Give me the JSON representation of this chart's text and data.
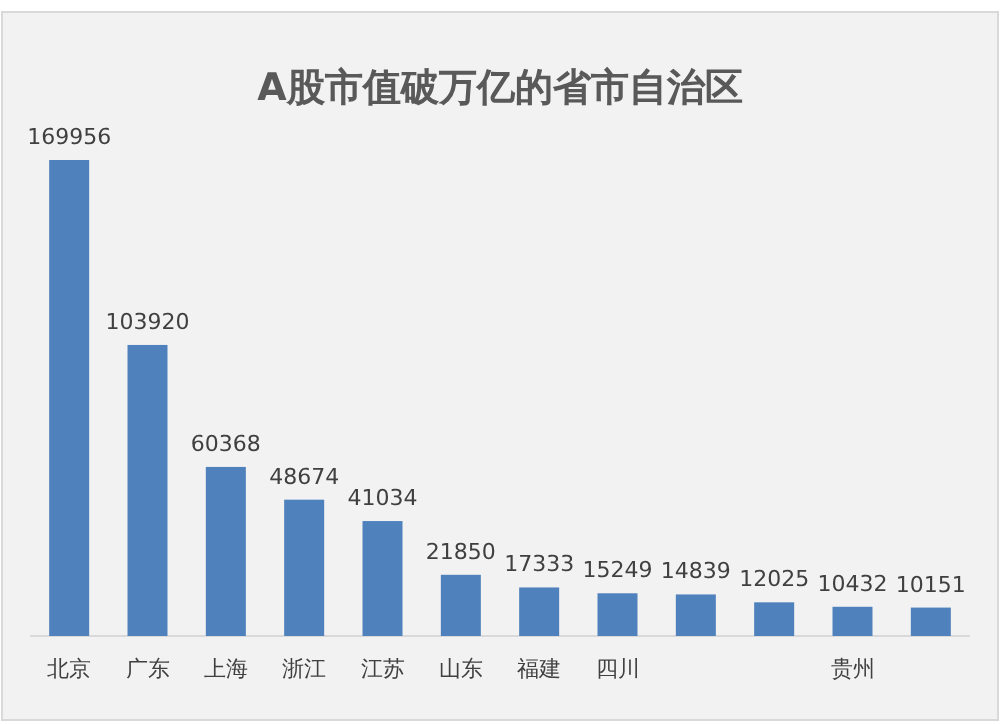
{
  "chart_data": {
    "type": "bar",
    "title": "A股市值破万亿的省市自治区",
    "categories": [
      "北京",
      "广东",
      "上海",
      "浙江",
      "江苏",
      "山东",
      "福建",
      "四川",
      null,
      null,
      "贵州",
      null
    ],
    "values": [
      169956,
      103920,
      60368,
      48674,
      41034,
      21850,
      17333,
      15249,
      14839,
      12025,
      10432,
      10151
    ],
    "color": "#4f81bd",
    "data_labels": true
  }
}
